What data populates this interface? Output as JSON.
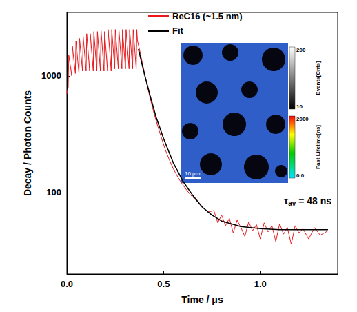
{
  "chart_data": {
    "type": "line",
    "x_label": "Time / μs",
    "y_label": "Decay / Photon Counts",
    "log": "y",
    "grid": false,
    "legend": "top",
    "xlim": [
      0,
      1.4
    ],
    "xticks": [
      {
        "value": 0,
        "label": "0.0"
      },
      {
        "value": 0.5,
        "label": "0.5"
      },
      {
        "value": 1.0,
        "label": "1.0"
      }
    ],
    "ylim": [
      20,
      3500
    ],
    "yticks": [
      100,
      1000
    ],
    "series": [
      {
        "name": "ReC16 (~1.5 nm)",
        "color": "#e8191c",
        "line_style": "solid",
        "x": [
          0.0,
          0.007,
          0.01,
          0.0255,
          0.0285,
          0.044,
          0.047,
          0.0625,
          0.0655,
          0.081,
          0.084,
          0.0995,
          0.1025,
          0.118,
          0.121,
          0.1365,
          0.1395,
          0.155,
          0.158,
          0.1735,
          0.1765,
          0.192,
          0.195,
          0.2105,
          0.2135,
          0.229,
          0.232,
          0.2475,
          0.2505,
          0.266,
          0.269,
          0.2845,
          0.2875,
          0.303,
          0.306,
          0.3215,
          0.3245,
          0.34,
          0.343,
          0.3585,
          0.3615,
          0.365,
          0.375,
          0.39,
          0.41,
          0.43,
          0.45,
          0.47,
          0.49,
          0.51,
          0.53,
          0.55,
          0.58,
          0.61,
          0.64,
          0.67,
          0.7,
          0.73,
          0.76,
          0.78,
          0.8,
          0.82,
          0.84,
          0.86,
          0.88,
          0.9,
          0.92,
          0.94,
          0.96,
          0.98,
          1.0,
          1.02,
          1.04,
          1.06,
          1.08,
          1.1,
          1.12,
          1.14,
          1.16,
          1.18,
          1.2,
          1.22,
          1.25,
          1.28,
          1.31,
          1.35
        ],
        "values": [
          700,
          800,
          1500,
          1000,
          1800,
          1050,
          2000,
          1050,
          2100,
          1100,
          2200,
          1100,
          2300,
          1100,
          2300,
          1100,
          2400,
          1100,
          2400,
          1100,
          2500,
          1100,
          2400,
          1100,
          2500,
          1100,
          2500,
          1150,
          2500,
          1150,
          2500,
          1150,
          2500,
          1150,
          2500,
          1150,
          2500,
          1150,
          2500,
          1150,
          2500,
          2000,
          1700,
          1300,
          900,
          650,
          480,
          370,
          290,
          230,
          190,
          160,
          130,
          110,
          95,
          85,
          75,
          68,
          70,
          55,
          64,
          52,
          60,
          45,
          58,
          50,
          42,
          56,
          47,
          53,
          40,
          55,
          46,
          52,
          38,
          54,
          44,
          50,
          36,
          52,
          45,
          49,
          40,
          50,
          43,
          47
        ]
      },
      {
        "name": "Fit",
        "color": "#000000",
        "line_style": "solid",
        "x": [
          0.37,
          0.4,
          0.43,
          0.46,
          0.5,
          0.55,
          0.6,
          0.65,
          0.7,
          0.75,
          0.8,
          0.9,
          1.0,
          1.1,
          1.25,
          1.35
        ],
        "values": [
          1700,
          1050,
          680,
          450,
          290,
          180,
          125,
          95,
          75,
          64,
          57,
          51,
          49,
          48,
          48,
          48
        ]
      }
    ],
    "annotation": {
      "symbol": "τ",
      "subscript": "av",
      "text": "= 48 ns"
    },
    "inset": {
      "scale_bar": "10 μm",
      "colorbars": [
        {
          "title": "Events[Cnts]",
          "ticks": [
            10,
            200
          ]
        },
        {
          "title": "Fast Lifetime[ns]",
          "ticks": [
            {
              "value": 0,
              "label": "0.0"
            },
            2000
          ]
        }
      ]
    }
  }
}
